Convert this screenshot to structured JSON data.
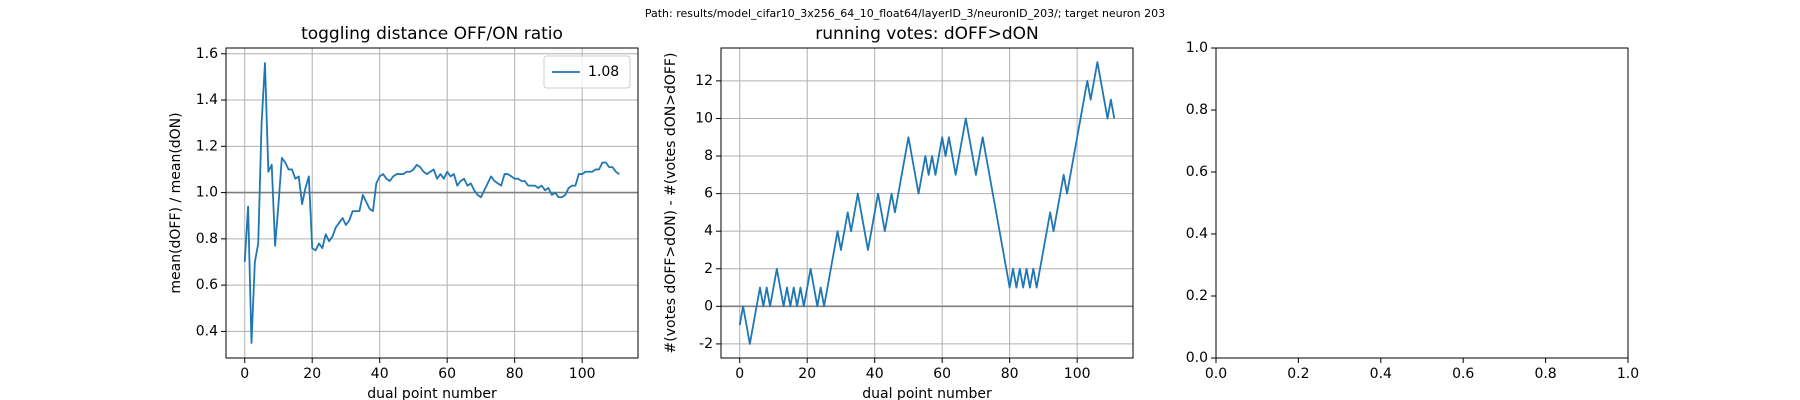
{
  "suptitle": "Path: results/model_cifar10_3x256_64_10_float64/layerID_3/neuronID_203/; target neuron 203",
  "chart_data": [
    {
      "type": "line",
      "title": "toggling distance OFF/ON ratio",
      "xlabel": "dual point number",
      "ylabel": "mean(dOFF) / mean(dON)",
      "x": [
        0,
        1,
        2,
        3,
        4,
        5,
        6,
        7,
        8,
        9,
        10,
        11,
        12,
        13,
        14,
        15,
        16,
        17,
        18,
        19,
        20,
        21,
        22,
        23,
        24,
        25,
        26,
        27,
        28,
        29,
        30,
        31,
        32,
        33,
        34,
        35,
        36,
        37,
        38,
        39,
        40,
        41,
        42,
        43,
        44,
        45,
        46,
        47,
        48,
        49,
        50,
        51,
        52,
        53,
        54,
        55,
        56,
        57,
        58,
        59,
        60,
        61,
        62,
        63,
        64,
        65,
        66,
        67,
        68,
        69,
        70,
        71,
        72,
        73,
        74,
        75,
        76,
        77,
        78,
        79,
        80,
        81,
        82,
        83,
        84,
        85,
        86,
        87,
        88,
        89,
        90,
        91,
        92,
        93,
        94,
        95,
        96,
        97,
        98,
        99,
        100,
        101,
        102,
        103,
        104,
        105,
        106,
        107,
        108,
        109,
        110,
        111
      ],
      "series": [
        {
          "name": "1.08",
          "color": "#1f77b4",
          "values": [
            0.7,
            0.94,
            0.35,
            0.7,
            0.78,
            1.3,
            1.56,
            1.09,
            1.12,
            0.77,
            0.95,
            1.15,
            1.13,
            1.1,
            1.1,
            1.06,
            1.07,
            0.95,
            1.02,
            1.07,
            0.76,
            0.75,
            0.78,
            0.76,
            0.82,
            0.79,
            0.81,
            0.85,
            0.87,
            0.89,
            0.86,
            0.88,
            0.92,
            0.92,
            0.92,
            0.99,
            0.96,
            0.93,
            0.92,
            1.04,
            1.07,
            1.08,
            1.06,
            1.05,
            1.07,
            1.08,
            1.08,
            1.08,
            1.09,
            1.09,
            1.1,
            1.12,
            1.11,
            1.09,
            1.08,
            1.09,
            1.1,
            1.06,
            1.08,
            1.06,
            1.09,
            1.07,
            1.08,
            1.03,
            1.05,
            1.06,
            1.03,
            1.04,
            1.01,
            0.99,
            0.98,
            1.01,
            1.04,
            1.07,
            1.05,
            1.04,
            1.03,
            1.08,
            1.08,
            1.07,
            1.06,
            1.06,
            1.05,
            1.05,
            1.03,
            1.03,
            1.03,
            1.02,
            1.03,
            1.01,
            1.02,
            0.99,
            1.0,
            0.98,
            0.98,
            0.99,
            1.02,
            1.03,
            1.03,
            1.08,
            1.08,
            1.09,
            1.09,
            1.09,
            1.1,
            1.1,
            1.13,
            1.13,
            1.11,
            1.11,
            1.09,
            1.08
          ]
        }
      ],
      "hline": 1,
      "hline_color": "#7f7f7f",
      "xlim": [
        -5.55,
        116.55
      ],
      "xticks": [
        0,
        20,
        40,
        60,
        80,
        100
      ],
      "ylim": [
        0.285,
        1.625
      ],
      "yticks": [
        {
          "value": 0.4,
          "label": "0.4"
        },
        {
          "value": 0.6,
          "label": "0.6"
        },
        {
          "value": 0.8,
          "label": "0.8"
        },
        {
          "value": 1,
          "label": "1.0"
        },
        {
          "value": 1.2,
          "label": "1.2"
        },
        {
          "value": 1.4,
          "label": "1.4"
        },
        {
          "value": 1.6,
          "label": "1.6"
        }
      ],
      "grid": true,
      "legend": "upper right"
    },
    {
      "type": "line",
      "title": "running votes: dOFF>dON",
      "xlabel": "dual point number",
      "ylabel": "#(votes dOFF>dON) - #(votes dON>dOFF)",
      "x": [
        0,
        1,
        2,
        3,
        4,
        5,
        6,
        7,
        8,
        9,
        10,
        11,
        12,
        13,
        14,
        15,
        16,
        17,
        18,
        19,
        20,
        21,
        22,
        23,
        24,
        25,
        26,
        27,
        28,
        29,
        30,
        31,
        32,
        33,
        34,
        35,
        36,
        37,
        38,
        39,
        40,
        41,
        42,
        43,
        44,
        45,
        46,
        47,
        48,
        49,
        50,
        51,
        52,
        53,
        54,
        55,
        56,
        57,
        58,
        59,
        60,
        61,
        62,
        63,
        64,
        65,
        66,
        67,
        68,
        69,
        70,
        71,
        72,
        73,
        74,
        75,
        76,
        77,
        78,
        79,
        80,
        81,
        82,
        83,
        84,
        85,
        86,
        87,
        88,
        89,
        90,
        91,
        92,
        93,
        94,
        95,
        96,
        97,
        98,
        99,
        100,
        101,
        102,
        103,
        104,
        105,
        106,
        107,
        108,
        109,
        110,
        111
      ],
      "series": [
        {
          "color": "#1f77b4",
          "values": [
            -1,
            0,
            -1,
            -2,
            -1,
            0,
            1,
            0,
            1,
            0,
            1,
            2,
            1,
            0,
            1,
            0,
            1,
            0,
            1,
            0,
            1,
            2,
            1,
            0,
            1,
            0,
            1,
            2,
            3,
            4,
            3,
            4,
            5,
            4,
            5,
            6,
            5,
            4,
            3,
            4,
            5,
            6,
            5,
            4,
            5,
            6,
            5,
            6,
            7,
            8,
            9,
            8,
            7,
            6,
            7,
            8,
            7,
            8,
            7,
            8,
            9,
            8,
            9,
            8,
            7,
            8,
            9,
            10,
            9,
            8,
            7,
            8,
            9,
            8,
            7,
            6,
            5,
            4,
            3,
            2,
            1,
            2,
            1,
            2,
            1,
            2,
            1,
            2,
            1,
            2,
            3,
            4,
            5,
            4,
            5,
            6,
            7,
            6,
            7,
            8,
            9,
            10,
            11,
            12,
            11,
            12,
            13,
            12,
            11,
            10,
            11,
            10
          ]
        }
      ],
      "hline": 0,
      "hline_color": "#7f7f7f",
      "xlim": [
        -5.55,
        116.55
      ],
      "xticks": [
        0,
        20,
        40,
        60,
        80,
        100
      ],
      "ylim": [
        -2.75,
        13.75
      ],
      "yticks": [
        -2,
        0,
        2,
        4,
        6,
        8,
        10,
        12
      ],
      "grid": true
    },
    {
      "type": "empty",
      "xlim": [
        0,
        1
      ],
      "xticks": [
        {
          "value": 0,
          "label": "0.0"
        },
        {
          "value": 0.2,
          "label": "0.2"
        },
        {
          "value": 0.4,
          "label": "0.4"
        },
        {
          "value": 0.6,
          "label": "0.6"
        },
        {
          "value": 0.8,
          "label": "0.8"
        },
        {
          "value": 1,
          "label": "1.0"
        }
      ],
      "ylim": [
        0,
        1
      ],
      "yticks": [
        {
          "value": 0,
          "label": "0.0"
        },
        {
          "value": 0.2,
          "label": "0.2"
        },
        {
          "value": 0.4,
          "label": "0.4"
        },
        {
          "value": 0.6,
          "label": "0.6"
        },
        {
          "value": 0.8,
          "label": "0.8"
        },
        {
          "value": 1,
          "label": "1.0"
        }
      ],
      "grid": false
    }
  ]
}
